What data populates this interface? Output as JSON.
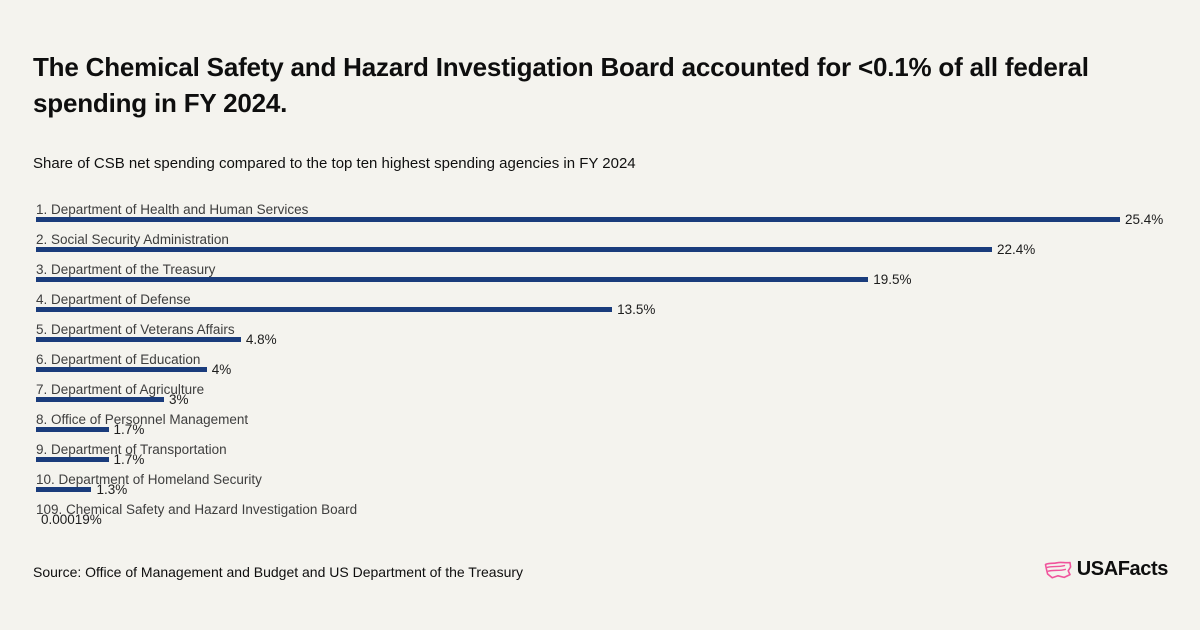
{
  "header": {
    "title": "The Chemical Safety and Hazard Investigation Board accounted for <0.1% of all federal spending in FY 2024.",
    "subtitle": "Share of CSB net spending compared to the top ten highest spending agencies in FY 2024"
  },
  "footer": {
    "source": "Source: Office of Management and Budget and US Department of the Treasury",
    "brand": "USAFacts",
    "brand_icon": "usa-map-outline-icon"
  },
  "colors": {
    "background": "#f4f3ee",
    "bar": "#1a3c7c",
    "brand_pink": "#f0549c",
    "title_text": "#0e0e0e",
    "label_text": "#3e3e3e",
    "value_text": "#1d1d1d"
  },
  "chart_data": {
    "type": "bar",
    "orientation": "horizontal",
    "title": "The Chemical Safety and Hazard Investigation Board accounted for <0.1% of all federal spending in FY 2024.",
    "subtitle": "Share of CSB net spending compared to the top ten highest spending agencies in FY 2024",
    "xlabel": "",
    "ylabel": "",
    "xlim": [
      0,
      25.4
    ],
    "grid": false,
    "legend": false,
    "bar_color": "#1a3c7c",
    "categories": [
      "1. Department of Health and Human Services",
      "2. Social Security Administration",
      "3. Department of the Treasury",
      "4. Department of Defense",
      "5. Department of Veterans Affairs",
      "6. Department of Education",
      "7. Department of Agriculture",
      "8. Office of Personnel Management",
      "9. Department of Transportation",
      "10. Department of Homeland Security",
      "109. Chemical Safety and Hazard Investigation Board"
    ],
    "values": [
      25.4,
      22.4,
      19.5,
      13.5,
      4.8,
      4,
      3,
      1.7,
      1.7,
      1.3,
      0.00019
    ],
    "value_labels": [
      "25.4%",
      "22.4%",
      "19.5%",
      "13.5%",
      "4.8%",
      "4%",
      "3%",
      "1.7%",
      "1.7%",
      "1.3%",
      "0.00019%"
    ]
  }
}
